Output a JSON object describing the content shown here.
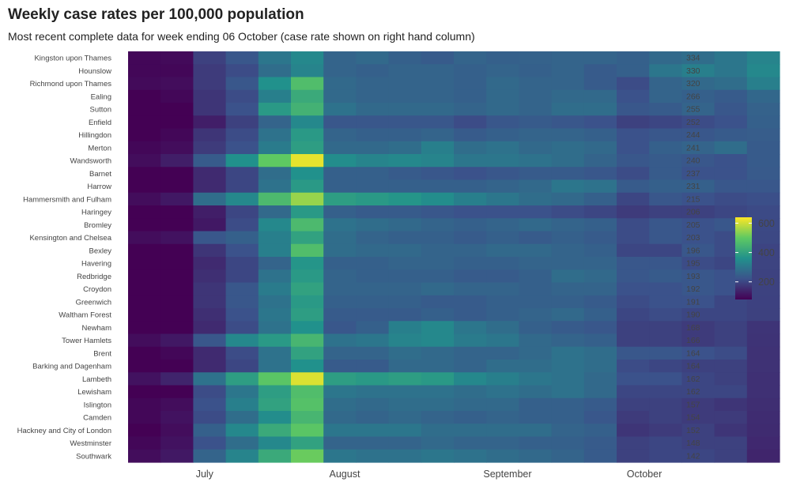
{
  "chart_data": {
    "type": "heatmap",
    "title": "Weekly case rates per 100,000 population",
    "subtitle": "Most recent complete data for week ending 06 October (case rate shown on right hand column)",
    "x_month_labels": [
      "July",
      "August",
      "September",
      "October"
    ],
    "rows": [
      {
        "area": "Kingston upon Thames",
        "rate": "334"
      },
      {
        "area": "Hounslow",
        "rate": "330"
      },
      {
        "area": "Richmond upon Thames",
        "rate": "320"
      },
      {
        "area": "Ealing",
        "rate": "266"
      },
      {
        "area": "Sutton",
        "rate": "255"
      },
      {
        "area": "Enfield",
        "rate": "252"
      },
      {
        "area": "Hillingdon",
        "rate": "244"
      },
      {
        "area": "Merton",
        "rate": "241"
      },
      {
        "area": "Wandsworth",
        "rate": "240"
      },
      {
        "area": "Barnet",
        "rate": "237"
      },
      {
        "area": "Harrow",
        "rate": "231"
      },
      {
        "area": "Hammersmith and Fulham",
        "rate": "215"
      },
      {
        "area": "Haringey",
        "rate": "206"
      },
      {
        "area": "Bromley",
        "rate": "205"
      },
      {
        "area": "Kensington and Chelsea",
        "rate": "203"
      },
      {
        "area": "Bexley",
        "rate": "196"
      },
      {
        "area": "Havering",
        "rate": "195"
      },
      {
        "area": "Redbridge",
        "rate": "193"
      },
      {
        "area": "Croydon",
        "rate": "192"
      },
      {
        "area": "Greenwich",
        "rate": "191"
      },
      {
        "area": "Waltham Forest",
        "rate": "190"
      },
      {
        "area": "Newham",
        "rate": "168"
      },
      {
        "area": "Tower Hamlets",
        "rate": "166"
      },
      {
        "area": "Brent",
        "rate": "164"
      },
      {
        "area": "Barking and Dagenham",
        "rate": "164"
      },
      {
        "area": "Lambeth",
        "rate": "162"
      },
      {
        "area": "Lewisham",
        "rate": "162"
      },
      {
        "area": "Islington",
        "rate": "157"
      },
      {
        "area": "Camden",
        "rate": "154"
      },
      {
        "area": "Hackney and City of London",
        "rate": "152"
      },
      {
        "area": "Westminster",
        "rate": "148"
      },
      {
        "area": "Southwark",
        "rate": "142"
      }
    ],
    "values": [
      [
        90,
        95,
        190,
        230,
        300,
        340,
        260,
        270,
        250,
        240,
        260,
        250,
        255,
        260,
        260,
        250,
        270,
        280,
        300,
        330
      ],
      [
        90,
        90,
        180,
        210,
        280,
        330,
        260,
        250,
        260,
        260,
        250,
        260,
        250,
        260,
        240,
        250,
        300,
        320,
        300,
        340
      ],
      [
        95,
        100,
        180,
        230,
        360,
        470,
        270,
        260,
        260,
        260,
        250,
        270,
        260,
        260,
        240,
        210,
        260,
        270,
        280,
        320
      ],
      [
        80,
        90,
        170,
        210,
        320,
        420,
        270,
        260,
        260,
        260,
        250,
        270,
        260,
        270,
        270,
        220,
        260,
        250,
        240,
        266
      ],
      [
        70,
        80,
        170,
        220,
        380,
        440,
        290,
        270,
        270,
        270,
        260,
        270,
        260,
        280,
        280,
        230,
        240,
        260,
        230,
        255
      ],
      [
        60,
        60,
        130,
        190,
        260,
        340,
        230,
        230,
        230,
        230,
        210,
        230,
        240,
        230,
        220,
        190,
        200,
        210,
        220,
        252
      ],
      [
        80,
        90,
        170,
        210,
        290,
        380,
        260,
        250,
        250,
        260,
        240,
        250,
        260,
        260,
        250,
        220,
        230,
        230,
        240,
        244
      ],
      [
        90,
        100,
        180,
        220,
        310,
        390,
        270,
        270,
        280,
        320,
        280,
        290,
        270,
        280,
        270,
        220,
        250,
        260,
        280,
        241
      ],
      [
        100,
        130,
        240,
        360,
        500,
        620,
        350,
        330,
        340,
        330,
        300,
        300,
        290,
        280,
        260,
        230,
        240,
        230,
        220,
        240
      ],
      [
        70,
        70,
        150,
        200,
        280,
        360,
        250,
        250,
        240,
        230,
        220,
        230,
        240,
        240,
        230,
        210,
        240,
        220,
        220,
        237
      ],
      [
        60,
        70,
        150,
        200,
        290,
        380,
        250,
        250,
        250,
        250,
        250,
        260,
        270,
        300,
        290,
        240,
        250,
        250,
        230,
        231
      ],
      [
        100,
        120,
        280,
        340,
        460,
        550,
        390,
        380,
        370,
        350,
        320,
        300,
        280,
        270,
        250,
        200,
        230,
        220,
        210,
        215
      ],
      [
        60,
        60,
        130,
        200,
        270,
        380,
        250,
        240,
        240,
        230,
        220,
        220,
        220,
        210,
        200,
        180,
        190,
        190,
        200,
        206
      ],
      [
        70,
        70,
        120,
        210,
        340,
        460,
        290,
        280,
        270,
        260,
        250,
        260,
        270,
        260,
        250,
        210,
        230,
        220,
        230,
        205
      ],
      [
        100,
        110,
        230,
        250,
        320,
        400,
        280,
        260,
        250,
        250,
        240,
        250,
        240,
        250,
        240,
        210,
        230,
        220,
        210,
        203
      ],
      [
        50,
        60,
        170,
        220,
        320,
        470,
        280,
        270,
        270,
        260,
        260,
        270,
        270,
        260,
        250,
        200,
        200,
        230,
        210,
        196
      ],
      [
        50,
        70,
        150,
        200,
        260,
        370,
        250,
        250,
        260,
        260,
        250,
        250,
        260,
        260,
        260,
        230,
        230,
        210,
        200,
        195
      ],
      [
        60,
        80,
        160,
        200,
        290,
        380,
        260,
        250,
        250,
        250,
        240,
        240,
        250,
        280,
        270,
        230,
        240,
        230,
        220,
        193
      ],
      [
        70,
        80,
        170,
        230,
        310,
        400,
        260,
        260,
        260,
        270,
        260,
        260,
        250,
        260,
        260,
        220,
        220,
        230,
        220,
        192
      ],
      [
        70,
        80,
        170,
        230,
        290,
        380,
        250,
        250,
        250,
        240,
        240,
        250,
        250,
        250,
        240,
        210,
        220,
        220,
        200,
        191
      ],
      [
        70,
        80,
        160,
        220,
        300,
        390,
        240,
        240,
        240,
        250,
        240,
        250,
        260,
        270,
        250,
        200,
        210,
        200,
        200,
        190
      ],
      [
        70,
        80,
        150,
        210,
        290,
        360,
        230,
        250,
        320,
        340,
        300,
        280,
        250,
        240,
        230,
        190,
        190,
        180,
        190,
        168
      ],
      [
        100,
        120,
        230,
        340,
        380,
        450,
        290,
        300,
        330,
        340,
        310,
        300,
        270,
        260,
        250,
        190,
        190,
        180,
        190,
        166
      ],
      [
        80,
        90,
        150,
        210,
        290,
        400,
        260,
        260,
        280,
        270,
        260,
        260,
        270,
        290,
        280,
        230,
        230,
        220,
        210,
        164
      ],
      [
        40,
        60,
        150,
        200,
        290,
        360,
        240,
        240,
        270,
        270,
        260,
        280,
        280,
        290,
        280,
        210,
        200,
        190,
        190,
        164
      ],
      [
        110,
        140,
        290,
        390,
        490,
        610,
        390,
        380,
        390,
        380,
        340,
        320,
        300,
        290,
        270,
        220,
        220,
        200,
        190,
        162
      ],
      [
        80,
        80,
        210,
        300,
        390,
        470,
        300,
        290,
        290,
        290,
        280,
        290,
        280,
        290,
        270,
        200,
        200,
        200,
        200,
        162
      ],
      [
        90,
        100,
        220,
        320,
        400,
        480,
        280,
        270,
        280,
        280,
        270,
        270,
        250,
        250,
        240,
        190,
        190,
        180,
        170,
        157
      ],
      [
        90,
        110,
        210,
        280,
        350,
        450,
        270,
        260,
        270,
        260,
        250,
        260,
        250,
        250,
        230,
        180,
        190,
        180,
        180,
        154
      ],
      [
        80,
        100,
        250,
        340,
        420,
        490,
        300,
        300,
        300,
        280,
        280,
        280,
        280,
        260,
        250,
        170,
        180,
        190,
        170,
        152
      ],
      [
        90,
        110,
        220,
        280,
        340,
        400,
        260,
        260,
        260,
        270,
        260,
        260,
        250,
        250,
        240,
        190,
        200,
        190,
        190,
        148
      ],
      [
        100,
        120,
        260,
        330,
        420,
        510,
        300,
        290,
        290,
        300,
        290,
        280,
        270,
        260,
        240,
        190,
        200,
        200,
        190,
        142
      ]
    ],
    "legend": {
      "ticks": [
        200,
        400,
        600
      ],
      "range": [
        80,
        640
      ],
      "placement": "right"
    },
    "colorscale": "viridis"
  }
}
